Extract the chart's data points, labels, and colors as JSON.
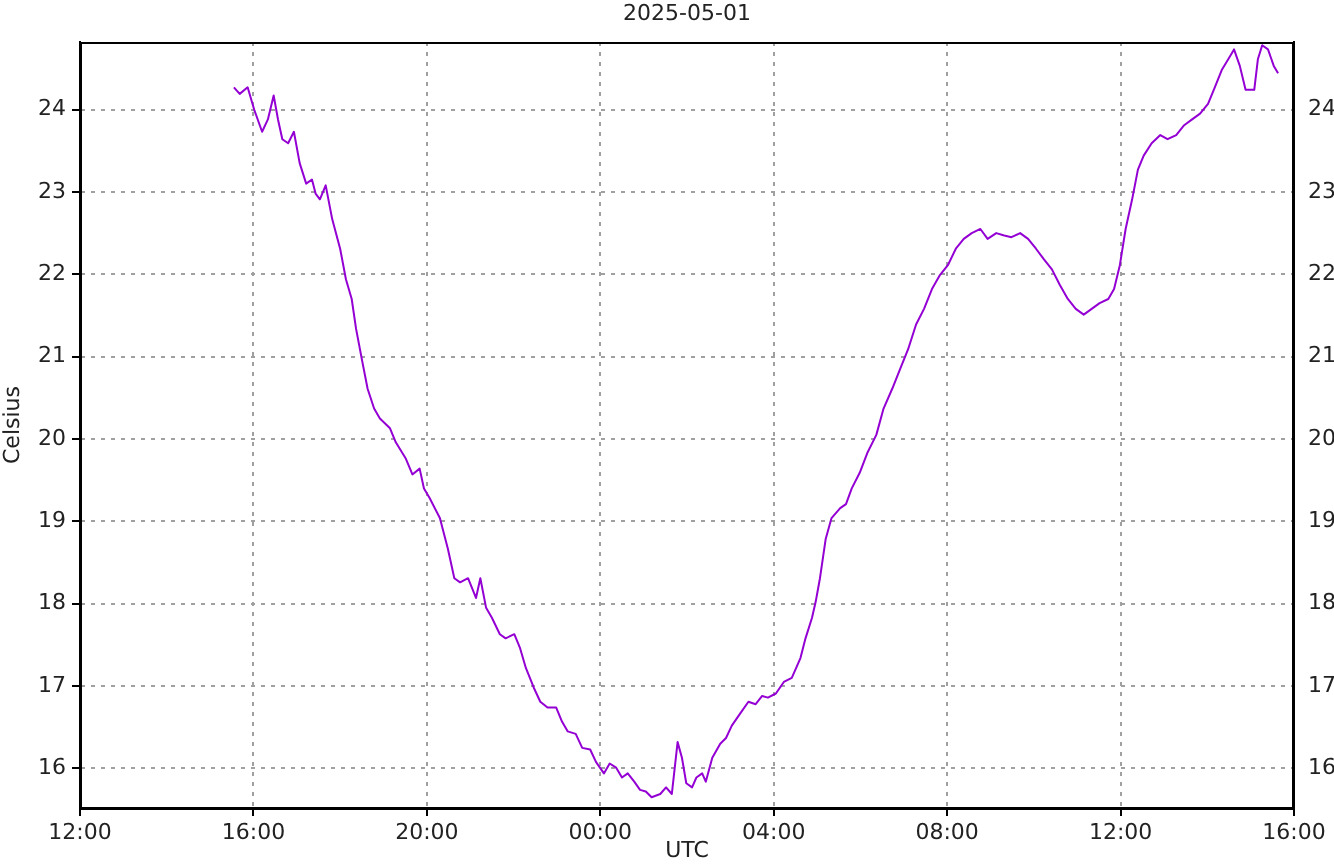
{
  "chart_data": {
    "type": "line",
    "title": "2025-05-01",
    "xlabel": "UTC",
    "ylabel": "Celsius",
    "xlim": [
      "2025-04-30T12:00",
      "2025-05-01T16:00"
    ],
    "xticks": [
      {
        "value": "2025-04-30T12:00",
        "label": "12:00"
      },
      {
        "value": "2025-04-30T16:00",
        "label": "16:00"
      },
      {
        "value": "2025-04-30T20:00",
        "label": "20:00"
      },
      {
        "value": "2025-05-01T00:00",
        "label": "00:00"
      },
      {
        "value": "2025-05-01T04:00",
        "label": "04:00"
      },
      {
        "value": "2025-05-01T08:00",
        "label": "08:00"
      },
      {
        "value": "2025-05-01T12:00",
        "label": "12:00"
      },
      {
        "value": "2025-05-01T16:00",
        "label": "16:00"
      }
    ],
    "ylim": [
      15.52,
      24.82
    ],
    "yticks": [
      16,
      17,
      18,
      19,
      20,
      21,
      22,
      23,
      24
    ],
    "y2lim": [
      15.52,
      24.82
    ],
    "y2ticks": [
      16,
      17,
      18,
      19,
      20,
      21,
      22,
      23,
      24
    ],
    "grid": true,
    "legend": false,
    "marker": "none",
    "line_style": "solid",
    "series": [
      {
        "color": "#9400d3",
        "x": [
          "2025-04-30T15:33",
          "2025-04-30T15:41",
          "2025-04-30T15:52",
          "2025-04-30T16:01",
          "2025-04-30T16:12",
          "2025-04-30T16:20",
          "2025-04-30T16:28",
          "2025-04-30T16:34",
          "2025-04-30T16:40",
          "2025-04-30T16:48",
          "2025-04-30T16:56",
          "2025-04-30T17:04",
          "2025-04-30T17:13",
          "2025-04-30T17:21",
          "2025-04-30T17:26",
          "2025-04-30T17:32",
          "2025-04-30T17:40",
          "2025-04-30T17:49",
          "2025-04-30T18:00",
          "2025-04-30T18:08",
          "2025-04-30T18:16",
          "2025-04-30T18:22",
          "2025-04-30T18:30",
          "2025-04-30T18:38",
          "2025-04-30T18:47",
          "2025-04-30T18:55",
          "2025-04-30T19:09",
          "2025-04-30T19:17",
          "2025-04-30T19:31",
          "2025-04-30T19:40",
          "2025-04-30T19:50",
          "2025-04-30T19:56",
          "2025-04-30T20:04",
          "2025-04-30T20:18",
          "2025-04-30T20:29",
          "2025-04-30T20:38",
          "2025-04-30T20:46",
          "2025-04-30T20:57",
          "2025-04-30T21:08",
          "2025-04-30T21:14",
          "2025-04-30T21:22",
          "2025-04-30T21:30",
          "2025-04-30T21:41",
          "2025-04-30T21:49",
          "2025-04-30T22:01",
          "2025-04-30T22:09",
          "2025-04-30T22:17",
          "2025-04-30T22:28",
          "2025-04-30T22:37",
          "2025-04-30T22:47",
          "2025-04-30T22:59",
          "2025-04-30T23:07",
          "2025-04-30T23:15",
          "2025-04-30T23:26",
          "2025-04-30T23:35",
          "2025-04-30T23:46",
          "2025-04-30T23:54",
          "2025-05-01T00:05",
          "2025-05-01T00:13",
          "2025-05-01T00:22",
          "2025-05-01T00:30",
          "2025-05-01T00:38",
          "2025-05-01T00:47",
          "2025-05-01T00:55",
          "2025-05-01T01:03",
          "2025-05-01T01:11",
          "2025-05-01T01:23",
          "2025-05-01T01:31",
          "2025-05-01T01:39",
          "2025-05-01T01:47",
          "2025-05-01T01:53",
          "2025-05-01T01:59",
          "2025-05-01T02:07",
          "2025-05-01T02:13",
          "2025-05-01T02:21",
          "2025-05-01T02:26",
          "2025-05-01T02:35",
          "2025-05-01T02:46",
          "2025-05-01T02:54",
          "2025-05-01T03:02",
          "2025-05-01T03:13",
          "2025-05-01T03:25",
          "2025-05-01T03:35",
          "2025-05-01T03:44",
          "2025-05-01T03:52",
          "2025-05-01T04:03",
          "2025-05-01T04:14",
          "2025-05-01T04:25",
          "2025-05-01T04:37",
          "2025-05-01T04:44",
          "2025-05-01T04:53",
          "2025-05-01T04:58",
          "2025-05-01T05:04",
          "2025-05-01T05:12",
          "2025-05-01T05:20",
          "2025-05-01T05:32",
          "2025-05-01T05:40",
          "2025-05-01T05:48",
          "2025-05-01T05:59",
          "2025-05-01T06:10",
          "2025-05-01T06:22",
          "2025-05-01T06:32",
          "2025-05-01T06:44",
          "2025-05-01T06:55",
          "2025-05-01T07:06",
          "2025-05-01T07:17",
          "2025-05-01T07:28",
          "2025-05-01T07:39",
          "2025-05-01T07:50",
          "2025-05-01T08:01",
          "2025-05-01T08:12",
          "2025-05-01T08:23",
          "2025-05-01T08:34",
          "2025-05-01T08:46",
          "2025-05-01T08:56",
          "2025-05-01T09:08",
          "2025-05-01T09:19",
          "2025-05-01T09:29",
          "2025-05-01T09:41",
          "2025-05-01T09:52",
          "2025-05-01T10:03",
          "2025-05-01T10:14",
          "2025-05-01T10:25",
          "2025-05-01T10:36",
          "2025-05-01T10:47",
          "2025-05-01T10:58",
          "2025-05-01T11:09",
          "2025-05-01T11:20",
          "2025-05-01T11:31",
          "2025-05-01T11:43",
          "2025-05-01T11:51",
          "2025-05-01T11:59",
          "2025-05-01T12:07",
          "2025-05-01T12:16",
          "2025-05-01T12:24",
          "2025-05-01T12:32",
          "2025-05-01T12:43",
          "2025-05-01T12:55",
          "2025-05-01T13:05",
          "2025-05-01T13:17",
          "2025-05-01T13:28",
          "2025-05-01T13:39",
          "2025-05-01T13:50",
          "2025-05-01T14:01",
          "2025-05-01T14:09",
          "2025-05-01T14:20",
          "2025-05-01T14:29",
          "2025-05-01T14:37",
          "2025-05-01T14:45",
          "2025-05-01T14:53",
          "2025-05-01T15:05",
          "2025-05-01T15:10",
          "2025-05-01T15:16",
          "2025-05-01T15:24",
          "2025-05-01T15:32",
          "2025-05-01T15:38"
        ],
        "values": [
          24.27,
          24.19,
          24.27,
          24.0,
          23.73,
          23.88,
          24.17,
          23.88,
          23.64,
          23.59,
          23.73,
          23.35,
          23.1,
          23.15,
          22.98,
          22.91,
          23.08,
          22.67,
          22.31,
          21.94,
          21.7,
          21.34,
          20.97,
          20.61,
          20.37,
          20.25,
          20.13,
          19.96,
          19.76,
          19.57,
          19.64,
          19.4,
          19.28,
          19.04,
          18.67,
          18.31,
          18.26,
          18.31,
          18.07,
          18.31,
          17.95,
          17.83,
          17.63,
          17.58,
          17.63,
          17.46,
          17.22,
          16.98,
          16.81,
          16.74,
          16.74,
          16.57,
          16.45,
          16.42,
          16.25,
          16.23,
          16.08,
          15.94,
          16.06,
          16.01,
          15.89,
          15.94,
          15.84,
          15.74,
          15.72,
          15.65,
          15.69,
          15.77,
          15.69,
          16.32,
          16.13,
          15.82,
          15.77,
          15.89,
          15.94,
          15.84,
          16.13,
          16.3,
          16.37,
          16.52,
          16.66,
          16.81,
          16.78,
          16.88,
          16.86,
          16.91,
          17.05,
          17.1,
          17.34,
          17.58,
          17.83,
          18.02,
          18.31,
          18.79,
          19.04,
          19.16,
          19.21,
          19.4,
          19.59,
          19.84,
          20.05,
          20.37,
          20.61,
          20.85,
          21.09,
          21.39,
          21.58,
          21.82,
          21.99,
          22.11,
          22.31,
          22.43,
          22.5,
          22.55,
          22.43,
          22.5,
          22.47,
          22.45,
          22.5,
          22.43,
          22.31,
          22.18,
          22.06,
          21.87,
          21.7,
          21.58,
          21.51,
          21.58,
          21.65,
          21.7,
          21.82,
          22.11,
          22.55,
          22.91,
          23.27,
          23.44,
          23.59,
          23.69,
          23.64,
          23.69,
          23.81,
          23.88,
          23.95,
          24.07,
          24.24,
          24.48,
          24.61,
          24.73,
          24.53,
          24.24,
          24.24,
          24.61,
          24.78,
          24.73,
          24.53,
          24.44
        ]
      }
    ]
  }
}
